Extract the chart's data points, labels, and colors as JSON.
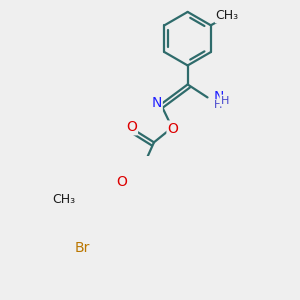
{
  "background_color": "#efefef",
  "bond_color": "#2e6b6b",
  "bond_width": 1.6,
  "atom_colors": {
    "N": "#2020ff",
    "O": "#dd0000",
    "Br": "#bb7700",
    "C": "#1a1a1a",
    "H": "#4444cc"
  },
  "figsize": [
    3.0,
    3.0
  ],
  "dpi": 100,
  "fs": 9.5,
  "r": 0.155
}
